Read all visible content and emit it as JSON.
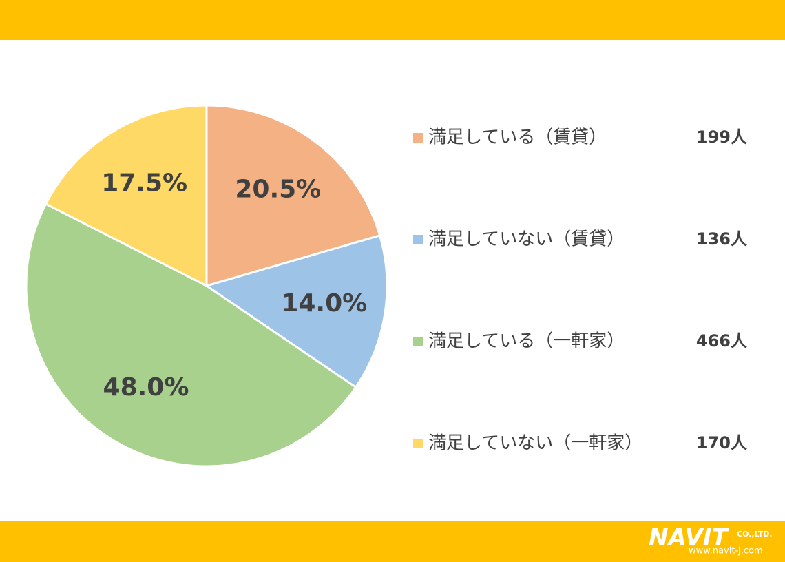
{
  "chart_data": {
    "type": "pie",
    "categories": [
      "満足している（賃貸）",
      "満足していない（賃貸）",
      "満足している（一軒家）",
      "満足していない（一軒家）"
    ],
    "values": [
      20.5,
      14.0,
      48.0,
      17.5
    ],
    "value_labels": [
      "20.5%",
      "14.0%",
      "48.0%",
      "17.5%"
    ],
    "counts": [
      "199人",
      "136人",
      "466人",
      "170人"
    ],
    "colors": [
      "#F4B183",
      "#9DC3E6",
      "#A9D18E",
      "#FFD966"
    ]
  },
  "logo": {
    "name": "NAVIT",
    "suffix": "CO.,LTD.",
    "url": "www.navit-j.com"
  }
}
